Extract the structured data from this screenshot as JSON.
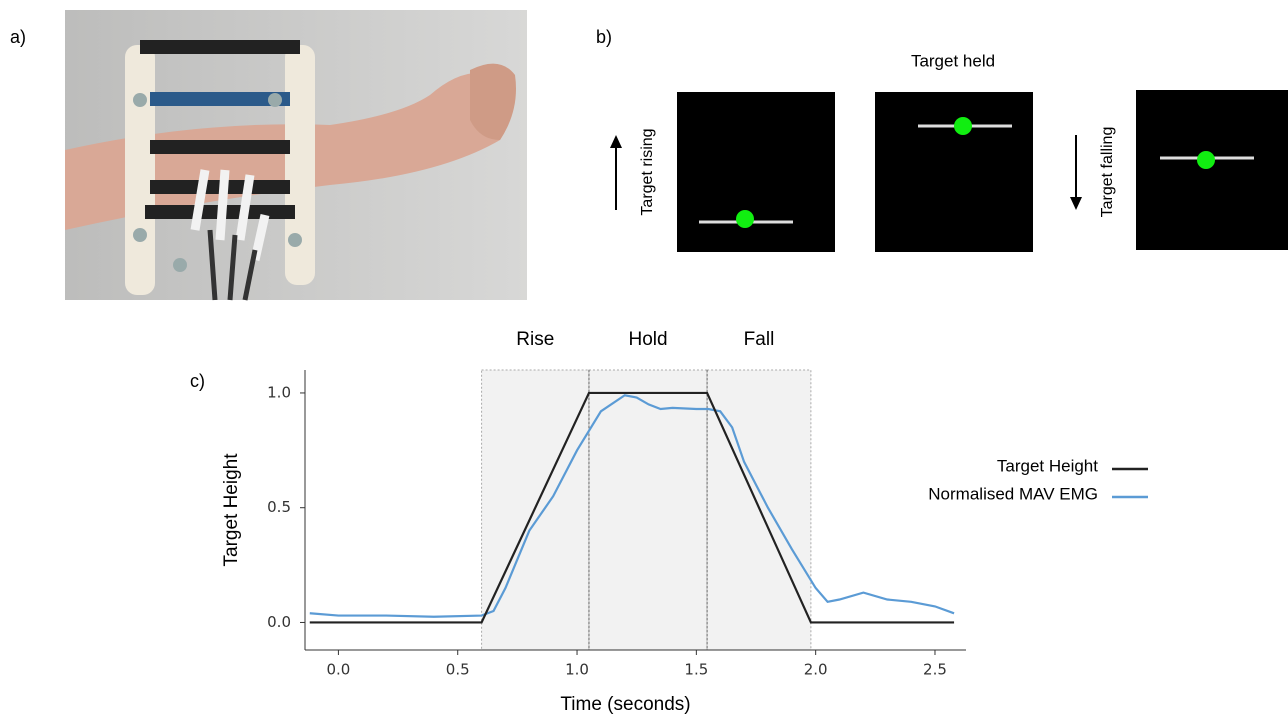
{
  "panel_labels": [
    "a)",
    "b)",
    "c)"
  ],
  "panel_b": {
    "title": "Target held",
    "rising": "Target rising",
    "falling": "Target falling"
  },
  "chart_data": {
    "type": "line",
    "xlabel": "Time (seconds)",
    "ylabel": "Target Height",
    "xlim": [
      -0.14,
      2.63
    ],
    "ylim": [
      -0.12,
      1.1
    ],
    "xticks": [
      {
        "value": 0,
        "label": "0.0"
      },
      {
        "value": 0.5,
        "label": "0.5"
      },
      {
        "value": 1,
        "label": "1.0"
      },
      {
        "value": 1.5,
        "label": "1.5"
      },
      {
        "value": 2,
        "label": "2.0"
      },
      {
        "value": 2.5,
        "label": "2.5"
      }
    ],
    "yticks": [
      {
        "value": 0,
        "label": "0.0"
      },
      {
        "value": 0.5,
        "label": "0.5"
      },
      {
        "value": 1,
        "label": "1.0"
      }
    ],
    "phases": [
      {
        "name": "Rise",
        "start": 0.6,
        "end": 1.05
      },
      {
        "name": "Hold",
        "start": 1.05,
        "end": 1.545
      },
      {
        "name": "Fall",
        "start": 1.545,
        "end": 1.98
      }
    ],
    "series": [
      {
        "name": "Target Height",
        "color": "#222222",
        "x": [
          -0.12,
          0.6,
          1.05,
          1.545,
          1.98,
          2.58
        ],
        "values": [
          0,
          0,
          1,
          1,
          0,
          0
        ]
      },
      {
        "name": "Normalised MAV EMG",
        "color": "#5b9bd5",
        "x": [
          -0.12,
          0.0,
          0.2,
          0.4,
          0.6,
          0.65,
          0.7,
          0.8,
          0.9,
          1.0,
          1.1,
          1.2,
          1.25,
          1.3,
          1.35,
          1.4,
          1.5,
          1.55,
          1.6,
          1.65,
          1.7,
          1.8,
          1.9,
          2.0,
          2.05,
          2.1,
          2.2,
          2.3,
          2.4,
          2.5,
          2.58
        ],
        "values": [
          0.04,
          0.03,
          0.03,
          0.025,
          0.03,
          0.05,
          0.15,
          0.4,
          0.55,
          0.75,
          0.92,
          0.99,
          0.98,
          0.95,
          0.93,
          0.935,
          0.93,
          0.93,
          0.92,
          0.85,
          0.7,
          0.5,
          0.32,
          0.15,
          0.09,
          0.1,
          0.13,
          0.1,
          0.09,
          0.07,
          0.04
        ]
      }
    ]
  }
}
